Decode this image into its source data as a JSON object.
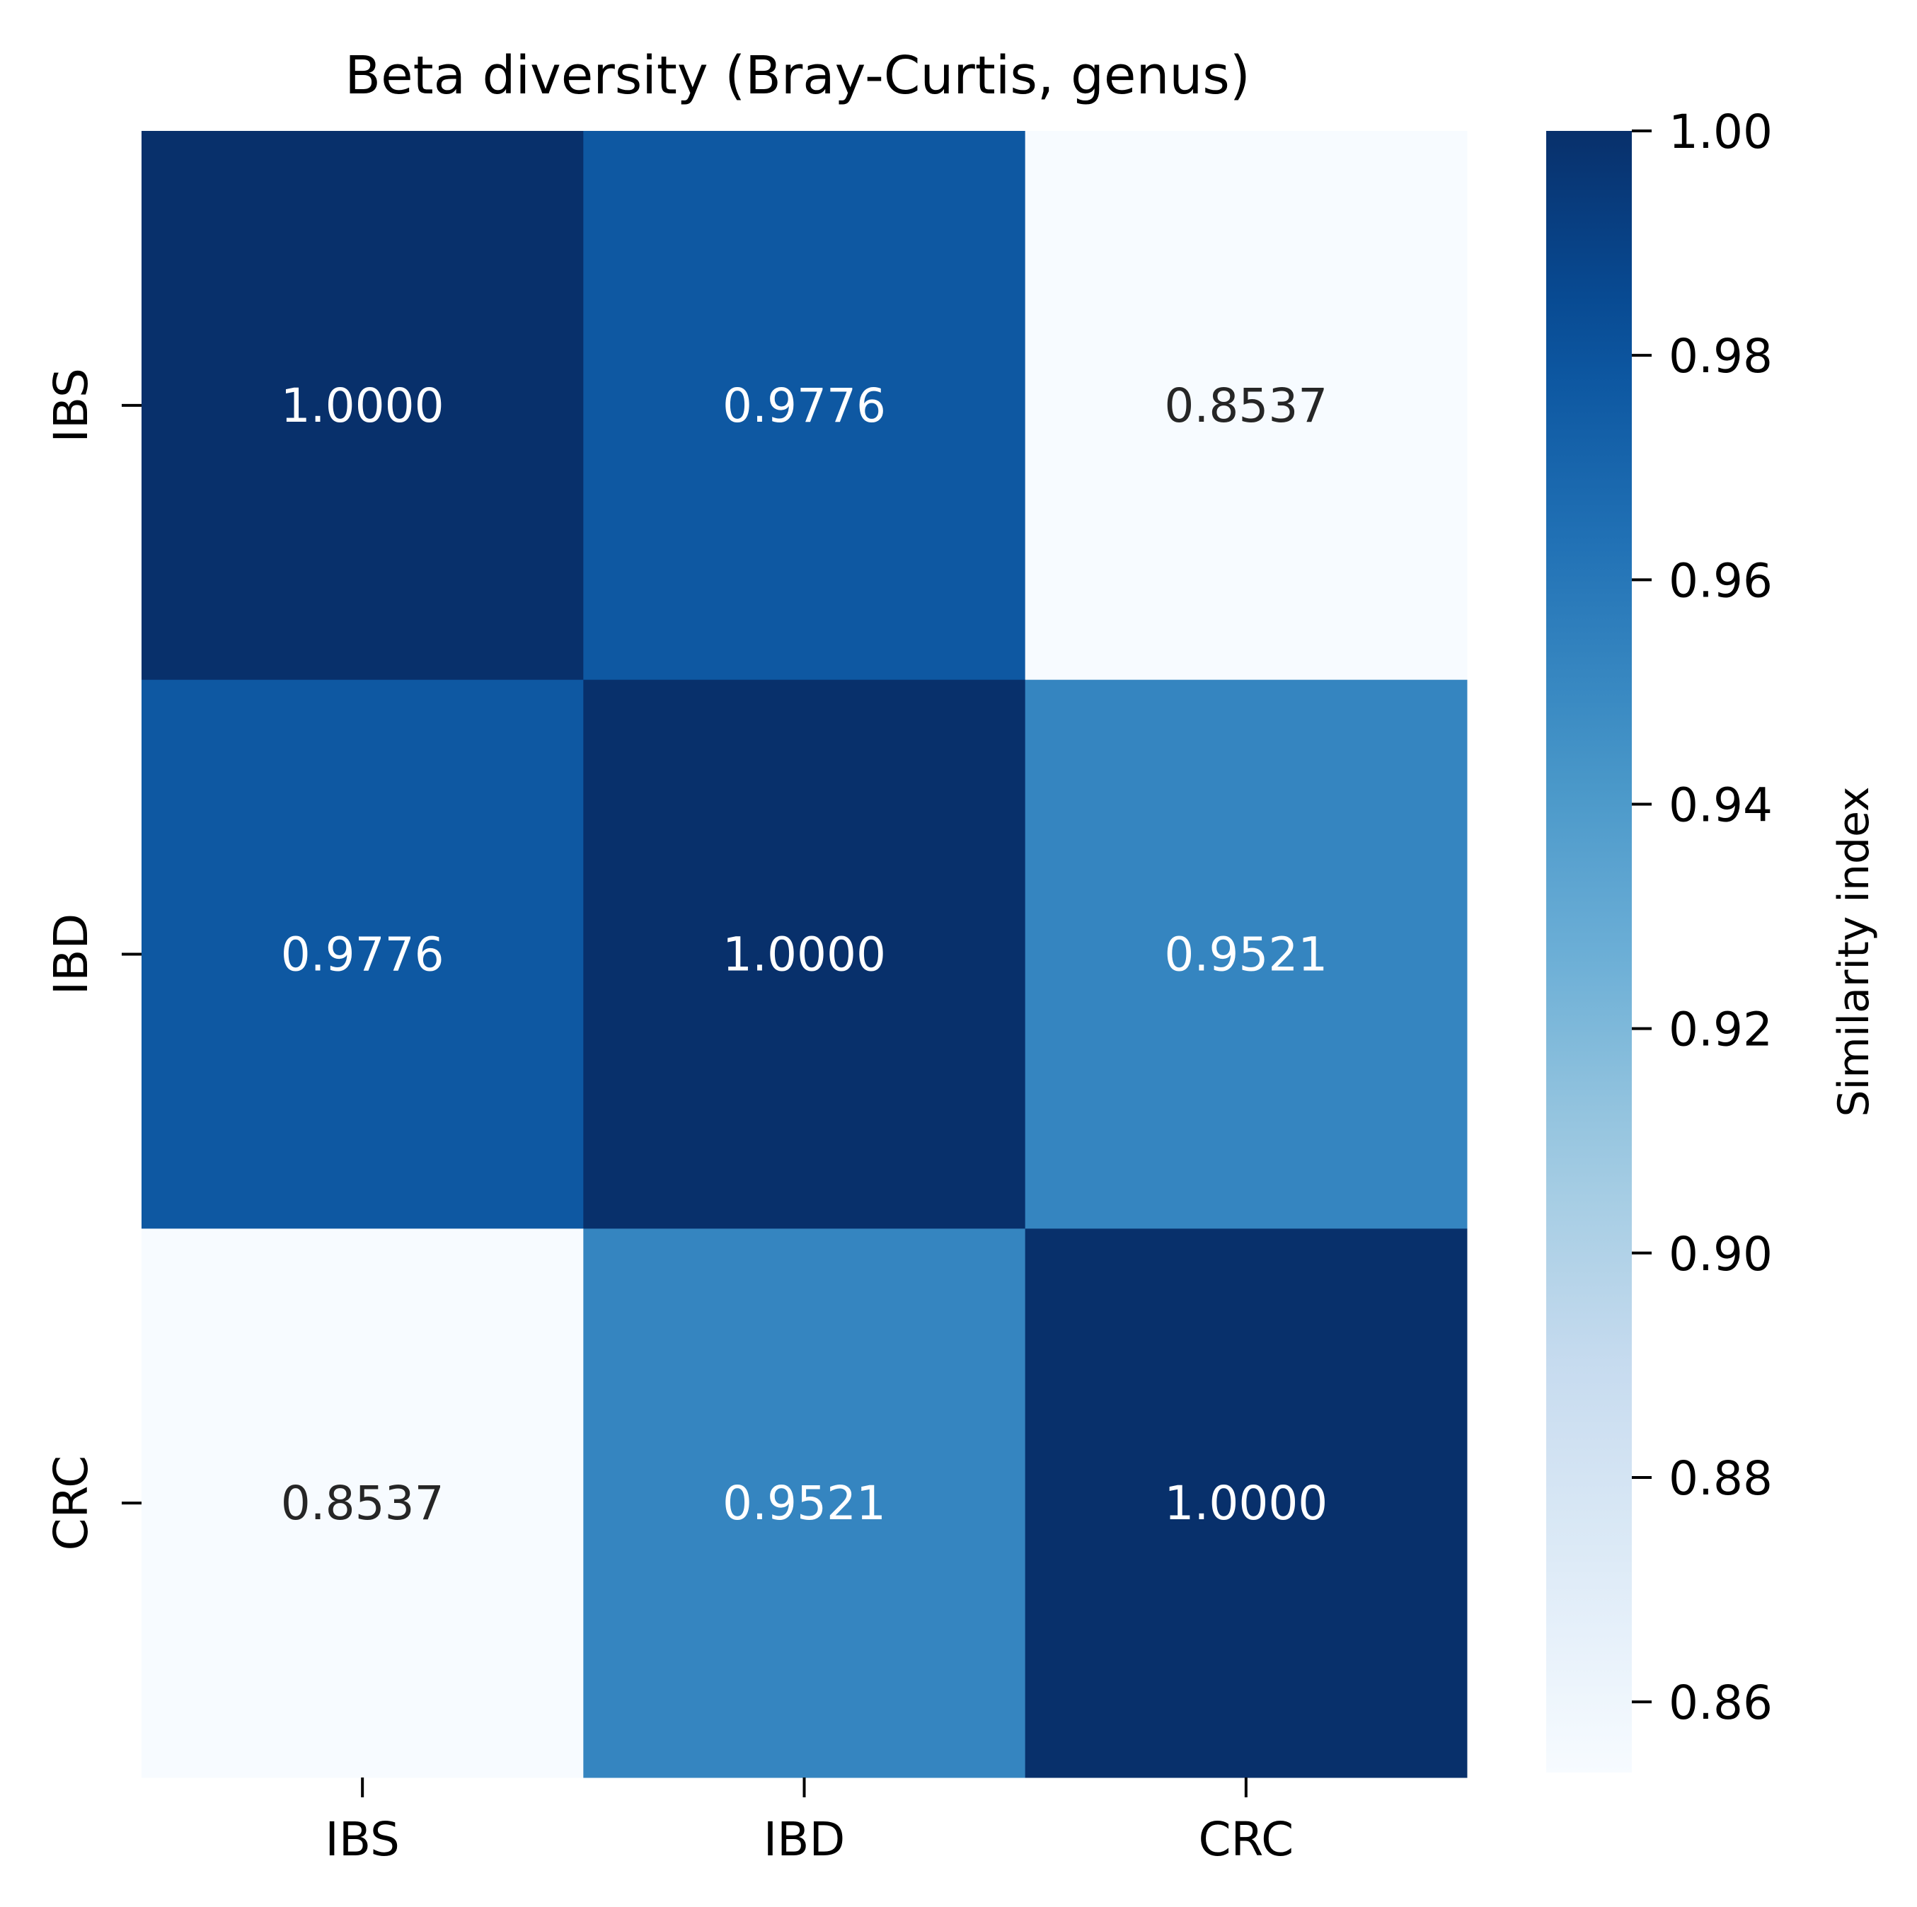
{
  "chart_data": {
    "type": "heatmap",
    "title": "Beta diversity (Bray-Curtis, genus)",
    "x_categories": [
      "IBS",
      "IBD",
      "CRC"
    ],
    "y_categories": [
      "IBS",
      "IBD",
      "CRC"
    ],
    "values": [
      [
        1.0,
        0.9776,
        0.8537
      ],
      [
        0.9776,
        1.0,
        0.9521
      ],
      [
        0.8537,
        0.9521,
        1.0
      ]
    ],
    "value_labels": [
      [
        "1.0000",
        "0.9776",
        "0.8537"
      ],
      [
        "0.9776",
        "1.0000",
        "0.9521"
      ],
      [
        "0.8537",
        "0.9521",
        "1.0000"
      ]
    ],
    "xlabel": "",
    "ylabel": "",
    "colormap": "Blues",
    "colorbar": {
      "label": "Similarity index",
      "vmin": 0.8537,
      "vmax": 1.0,
      "ticks": [
        0.86,
        0.88,
        0.9,
        0.92,
        0.94,
        0.96,
        0.98,
        1.0
      ],
      "tick_labels": [
        "0.86",
        "0.88",
        "0.90",
        "0.92",
        "0.94",
        "0.96",
        "0.98",
        "1.00"
      ]
    },
    "colors": {
      "text_light": "#ffffff",
      "text_dark": "#262626"
    }
  }
}
